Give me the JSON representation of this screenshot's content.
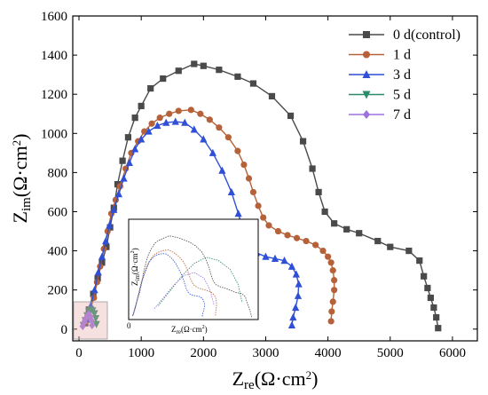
{
  "chart_data": {
    "type": "scatter",
    "xlabel": "Zre(Ω·cm²)",
    "ylabel": "Zim(Ω·cm²)",
    "xlim": [
      -100,
      6400
    ],
    "ylim": [
      -60,
      1600
    ],
    "xticks": [
      0,
      1000,
      2000,
      3000,
      4000,
      5000,
      6000
    ],
    "yticks": [
      0,
      200,
      400,
      600,
      800,
      1000,
      1200,
      1400,
      1600
    ],
    "legend_position": "top-right",
    "series": [
      {
        "name": "0 d(control)",
        "color": "#4a4a4a",
        "marker": "square",
        "points": [
          [
            100,
            30
          ],
          [
            160,
            100
          ],
          [
            230,
            180
          ],
          [
            300,
            260
          ],
          [
            370,
            340
          ],
          [
            440,
            420
          ],
          [
            500,
            520
          ],
          [
            560,
            620
          ],
          [
            620,
            740
          ],
          [
            700,
            860
          ],
          [
            790,
            980
          ],
          [
            900,
            1080
          ],
          [
            1000,
            1140
          ],
          [
            1150,
            1230
          ],
          [
            1350,
            1280
          ],
          [
            1600,
            1320
          ],
          [
            1850,
            1355
          ],
          [
            2000,
            1345
          ],
          [
            2250,
            1325
          ],
          [
            2550,
            1290
          ],
          [
            2800,
            1255
          ],
          [
            3100,
            1190
          ],
          [
            3400,
            1090
          ],
          [
            3600,
            960
          ],
          [
            3750,
            820
          ],
          [
            3850,
            700
          ],
          [
            3950,
            600
          ],
          [
            4100,
            540
          ],
          [
            4300,
            510
          ],
          [
            4500,
            490
          ],
          [
            4800,
            450
          ],
          [
            5000,
            420
          ],
          [
            5300,
            400
          ],
          [
            5470,
            350
          ],
          [
            5540,
            270
          ],
          [
            5600,
            210
          ],
          [
            5650,
            160
          ],
          [
            5700,
            110
          ],
          [
            5740,
            60
          ],
          [
            5770,
            5
          ]
        ]
      },
      {
        "name": "1 d",
        "color": "#b5623a",
        "marker": "circle",
        "points": [
          [
            120,
            40
          ],
          [
            180,
            100
          ],
          [
            240,
            160
          ],
          [
            290,
            240
          ],
          [
            340,
            320
          ],
          [
            400,
            410
          ],
          [
            460,
            500
          ],
          [
            520,
            590
          ],
          [
            590,
            660
          ],
          [
            660,
            730
          ],
          [
            750,
            820
          ],
          [
            840,
            900
          ],
          [
            950,
            960
          ],
          [
            1050,
            1010
          ],
          [
            1170,
            1050
          ],
          [
            1300,
            1080
          ],
          [
            1450,
            1100
          ],
          [
            1600,
            1115
          ],
          [
            1800,
            1120
          ],
          [
            1950,
            1100
          ],
          [
            2100,
            1070
          ],
          [
            2250,
            1030
          ],
          [
            2400,
            980
          ],
          [
            2550,
            910
          ],
          [
            2650,
            840
          ],
          [
            2730,
            770
          ],
          [
            2800,
            700
          ],
          [
            2880,
            630
          ],
          [
            2960,
            570
          ],
          [
            3050,
            530
          ],
          [
            3200,
            500
          ],
          [
            3350,
            480
          ],
          [
            3500,
            465
          ],
          [
            3650,
            450
          ],
          [
            3800,
            430
          ],
          [
            3920,
            400
          ],
          [
            4000,
            370
          ],
          [
            4050,
            340
          ],
          [
            4080,
            300
          ],
          [
            4100,
            250
          ],
          [
            4100,
            200
          ],
          [
            4080,
            140
          ],
          [
            4060,
            90
          ],
          [
            4050,
            40
          ]
        ]
      },
      {
        "name": "3 d",
        "color": "#2e4fd6",
        "marker": "triangle",
        "points": [
          [
            130,
            50
          ],
          [
            190,
            120
          ],
          [
            250,
            200
          ],
          [
            310,
            290
          ],
          [
            370,
            370
          ],
          [
            430,
            450
          ],
          [
            490,
            530
          ],
          [
            560,
            610
          ],
          [
            640,
            690
          ],
          [
            720,
            770
          ],
          [
            810,
            850
          ],
          [
            900,
            920
          ],
          [
            1000,
            970
          ],
          [
            1120,
            1010
          ],
          [
            1260,
            1040
          ],
          [
            1400,
            1055
          ],
          [
            1550,
            1060
          ],
          [
            1700,
            1055
          ],
          [
            1850,
            1020
          ],
          [
            2000,
            970
          ],
          [
            2150,
            900
          ],
          [
            2300,
            810
          ],
          [
            2450,
            700
          ],
          [
            2560,
            590
          ],
          [
            2650,
            490
          ],
          [
            2750,
            420
          ],
          [
            2850,
            390
          ],
          [
            3000,
            370
          ],
          [
            3150,
            360
          ],
          [
            3300,
            350
          ],
          [
            3420,
            320
          ],
          [
            3490,
            280
          ],
          [
            3530,
            230
          ],
          [
            3520,
            170
          ],
          [
            3480,
            110
          ],
          [
            3440,
            60
          ],
          [
            3420,
            20
          ]
        ]
      },
      {
        "name": "5 d",
        "color": "#2a8c6a",
        "marker": "triangle-down",
        "points": [
          [
            70,
            20
          ],
          [
            100,
            45
          ],
          [
            130,
            70
          ],
          [
            160,
            90
          ],
          [
            190,
            100
          ],
          [
            220,
            95
          ],
          [
            250,
            80
          ],
          [
            270,
            55
          ],
          [
            280,
            25
          ]
        ]
      },
      {
        "name": "7 d",
        "color": "#9b72e0",
        "marker": "diamond",
        "points": [
          [
            60,
            15
          ],
          [
            85,
            35
          ],
          [
            110,
            55
          ],
          [
            135,
            70
          ],
          [
            160,
            75
          ],
          [
            185,
            65
          ],
          [
            200,
            45
          ],
          [
            210,
            20
          ]
        ]
      }
    ]
  }
}
